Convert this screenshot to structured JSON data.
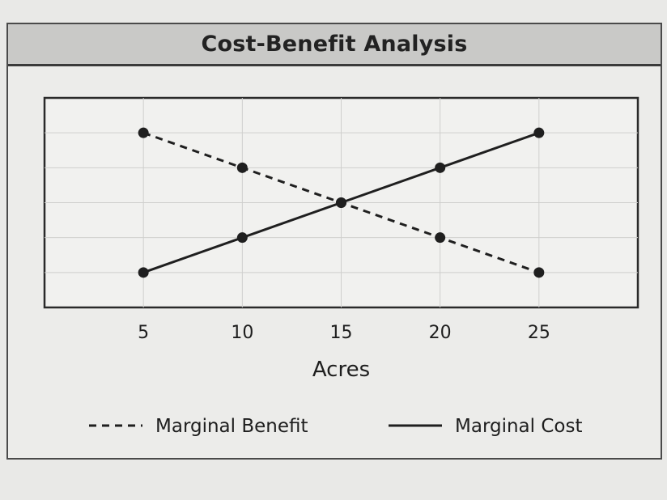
{
  "chart_data": {
    "type": "line",
    "title": "Cost-Benefit Analysis",
    "xlabel": "Acres",
    "ylabel": "",
    "x": [
      5,
      10,
      15,
      20,
      25
    ],
    "x_tick_labels": [
      "5",
      "10",
      "15",
      "20",
      "25"
    ],
    "xlim": [
      0,
      30
    ],
    "ylim": [
      0,
      6
    ],
    "grid": true,
    "legend_position": "bottom",
    "series": [
      {
        "name": "Marginal Benefit",
        "values": [
          5,
          4,
          3,
          2,
          1
        ],
        "style": "dashed",
        "color": "#1f1f1f"
      },
      {
        "name": "Marginal Cost",
        "values": [
          1,
          2,
          3,
          4,
          5
        ],
        "style": "solid",
        "color": "#1f1f1f"
      }
    ]
  }
}
